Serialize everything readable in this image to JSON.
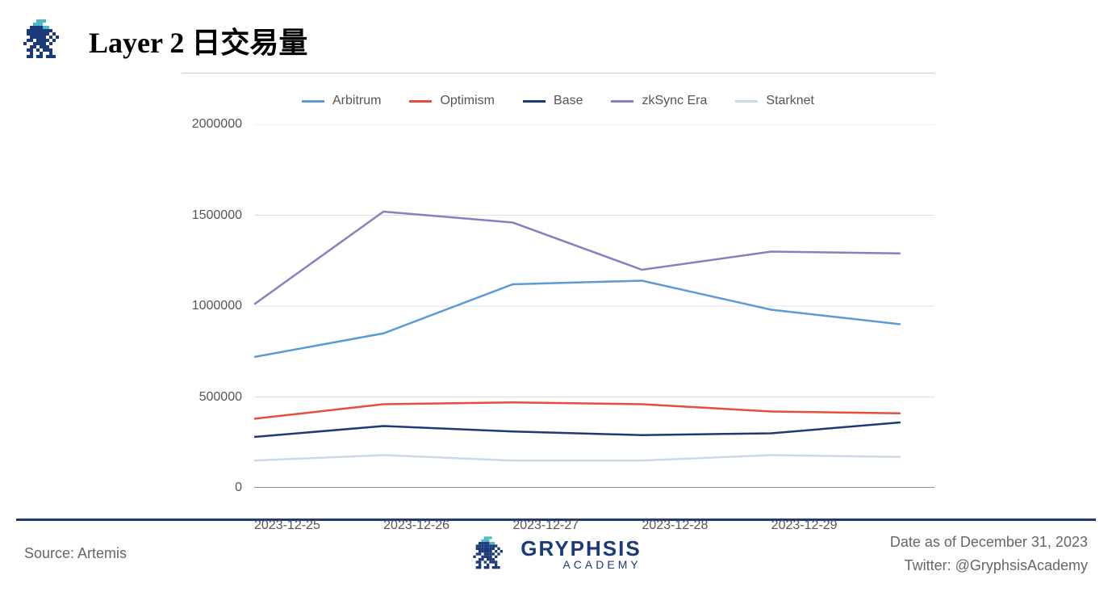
{
  "header": {
    "title": "Layer 2 日交易量"
  },
  "chart": {
    "type": "line",
    "background_color": "#ffffff",
    "grid_color": "#e0e0e0",
    "axis_color": "#666666",
    "label_color": "#555555",
    "label_fontsize": 16,
    "line_width": 2.5,
    "x_categories": [
      "2023-12-25",
      "2023-12-26",
      "2023-12-27",
      "2023-12-28",
      "2023-12-29"
    ],
    "x_positions_pct": [
      0,
      19,
      38,
      57,
      76,
      95
    ],
    "y_ticks": [
      0,
      500000,
      1000000,
      1500000,
      2000000
    ],
    "y_tick_labels": [
      "0",
      "500000",
      "1000000",
      "1500000",
      "2000000"
    ],
    "ylim": [
      0,
      2000000
    ],
    "series": [
      {
        "name": "Arbitrum",
        "color": "#5b9bd5",
        "values_at_xpos": [
          720000,
          850000,
          1120000,
          1140000,
          980000,
          900000
        ]
      },
      {
        "name": "Optimism",
        "color": "#e74c3c",
        "values_at_xpos": [
          380000,
          460000,
          470000,
          460000,
          420000,
          410000
        ]
      },
      {
        "name": "Base",
        "color": "#1b3a7a",
        "values_at_xpos": [
          280000,
          340000,
          310000,
          290000,
          300000,
          360000
        ]
      },
      {
        "name": "zkSync Era",
        "color": "#8e7cc3",
        "values_at_xpos": [
          1010000,
          1520000,
          1460000,
          1200000,
          1300000,
          1290000
        ]
      },
      {
        "name": "Starknet",
        "color": "#c9d8e8",
        "values_at_xpos": [
          150000,
          180000,
          150000,
          150000,
          180000,
          170000
        ]
      }
    ]
  },
  "footer": {
    "source": "Source: Artemis",
    "date": "Date as of December 31, 2023",
    "twitter": "Twitter: @GryphsisAcademy",
    "brand_main": "GRYPHSIS",
    "brand_sub": "ACADEMY",
    "rule_color": "#1b3a7a"
  },
  "logo": {
    "primary_color": "#1b3a7a",
    "accent_color": "#4db8c8"
  }
}
